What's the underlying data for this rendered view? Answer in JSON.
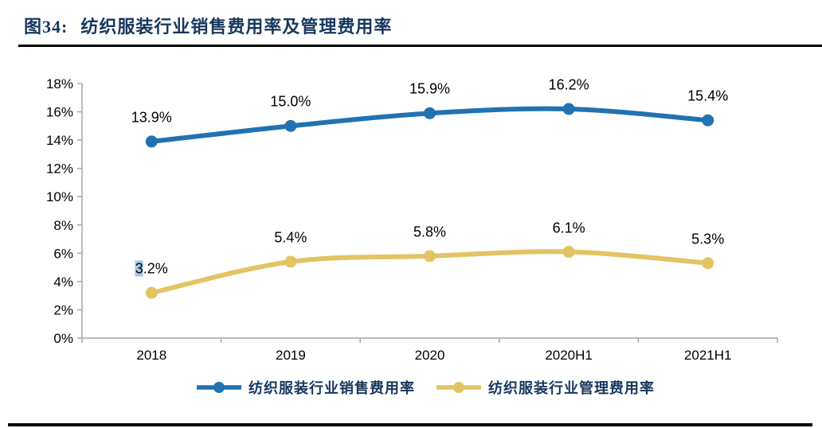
{
  "page": {
    "figure_number": "图34:",
    "figure_title": "纺织服装行业销售费用率及管理费用率",
    "title_color": "#17375E",
    "rule_color": "#000000"
  },
  "chart_data": {
    "type": "line",
    "categories": [
      "2018",
      "2019",
      "2020",
      "2020H1",
      "2021H1"
    ],
    "series": [
      {
        "name": "纺织服装行业销售费用率",
        "color": "#2272B2",
        "values": [
          13.9,
          15.0,
          15.9,
          16.2,
          15.4
        ],
        "labels": [
          "13.9%",
          "15.0%",
          "15.9%",
          "16.2%",
          "15.4%"
        ]
      },
      {
        "name": "纺织服装行业管理费用率",
        "color": "#E2C464",
        "values": [
          3.2,
          5.4,
          5.8,
          6.1,
          5.3
        ],
        "labels": [
          "3.2%",
          "5.4%",
          "5.8%",
          "6.1%",
          "5.3%"
        ]
      }
    ],
    "ylim": [
      0,
      18
    ],
    "y_tick_step": 2,
    "y_tick_labels": [
      "0%",
      "2%",
      "4%",
      "6%",
      "8%",
      "10%",
      "12%",
      "14%",
      "16%",
      "18%"
    ],
    "grid": false,
    "smooth_lines": true,
    "legend_position": "bottom",
    "axis_color": "#A6A6A6",
    "tick_label_color": "#000000",
    "data_label_color": "#000000",
    "selection_highlight": {
      "series_index": 1,
      "point_index": 0,
      "char_count": 1,
      "color": "#A3C6E8"
    }
  }
}
